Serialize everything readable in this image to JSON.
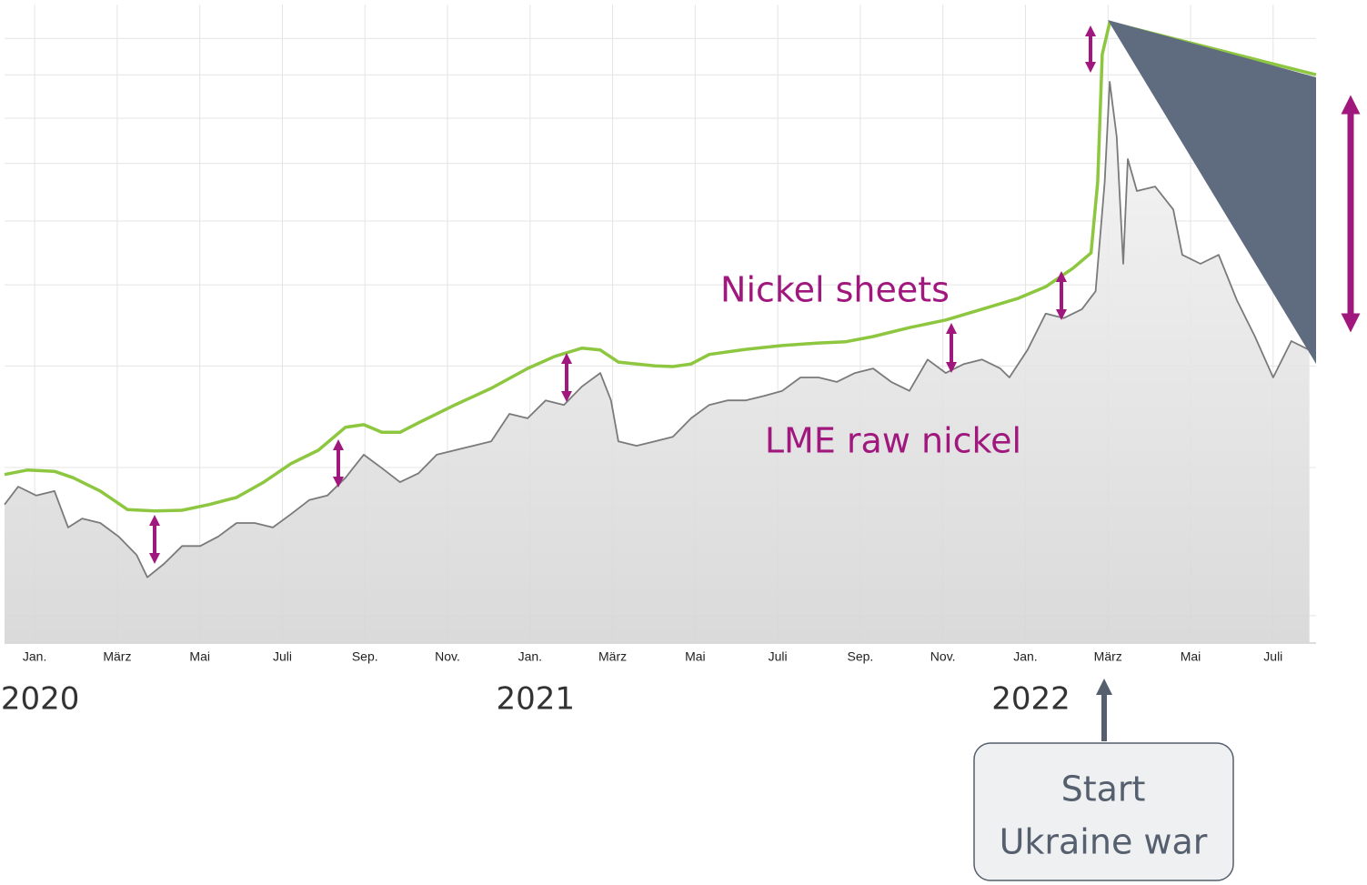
{
  "chart_data": {
    "type": "line",
    "annotations": [
      "Nickel sheets",
      "LME raw nickel"
    ],
    "callout": [
      "Start",
      "Ukraine war"
    ],
    "year_labels": [
      {
        "value": 0,
        "label": "2020"
      },
      {
        "value": 12,
        "label": "2021"
      },
      {
        "value": 24,
        "label": "2022"
      }
    ],
    "xlim": [
      -0.73,
      31.04
    ],
    "ylim": [
      0,
      100
    ],
    "xticks": [
      {
        "value": 0,
        "label": "Jan."
      },
      {
        "value": 2,
        "label": "März"
      },
      {
        "value": 4,
        "label": "Mai"
      },
      {
        "value": 6,
        "label": "Juli"
      },
      {
        "value": 8,
        "label": "Sep."
      },
      {
        "value": 10,
        "label": "Nov."
      },
      {
        "value": 12,
        "label": "Jan."
      },
      {
        "value": 14,
        "label": "März"
      },
      {
        "value": 16,
        "label": "Mai"
      },
      {
        "value": 18,
        "label": "Juli"
      },
      {
        "value": 20,
        "label": "Sep."
      },
      {
        "value": 22,
        "label": "Nov."
      },
      {
        "value": 24,
        "label": "Jan."
      },
      {
        "value": 26,
        "label": "März"
      },
      {
        "value": 28,
        "label": "Mai"
      },
      {
        "value": 30,
        "label": "Juli"
      }
    ],
    "yticks": [
      4.3,
      27.5,
      43.4,
      56.1,
      66.1,
      75.1,
      82.2,
      89.0,
      94.7
    ],
    "grid": true,
    "series": [
      {
        "name": "LME raw nickel",
        "color": "#7a7a7a",
        "area": true,
        "x": [
          -0.73,
          -0.4,
          0.04,
          0.48,
          0.81,
          1.15,
          1.59,
          2.03,
          2.47,
          2.73,
          3.13,
          3.57,
          4.01,
          4.45,
          4.89,
          5.33,
          5.77,
          6.21,
          6.65,
          7.09,
          7.53,
          7.97,
          8.41,
          8.85,
          9.3,
          9.74,
          10.18,
          10.62,
          11.06,
          11.5,
          11.94,
          12.38,
          12.82,
          13.26,
          13.7,
          13.96,
          14.14,
          14.58,
          15.02,
          15.46,
          15.9,
          16.34,
          16.78,
          17.22,
          17.67,
          18.11,
          18.55,
          18.99,
          19.43,
          19.87,
          20.31,
          20.75,
          21.19,
          21.63,
          22.07,
          22.51,
          22.95,
          23.39,
          23.61,
          24.05,
          24.49,
          24.93,
          25.37,
          25.7,
          25.92,
          26.04,
          26.21,
          26.37,
          26.48,
          26.7,
          27.14,
          27.58,
          27.8,
          28.24,
          28.68,
          29.12,
          29.56,
          30.0,
          30.44,
          30.88
        ],
        "values": [
          21.7,
          24.5,
          23.1,
          23.8,
          18.1,
          19.5,
          18.8,
          16.7,
          13.8,
          10.3,
          12.4,
          15.2,
          15.2,
          16.7,
          18.8,
          18.8,
          18.1,
          20.2,
          22.4,
          23.1,
          25.9,
          29.5,
          27.4,
          25.2,
          26.6,
          29.5,
          30.2,
          30.9,
          31.6,
          35.9,
          35.2,
          38.0,
          37.3,
          40.2,
          42.3,
          38.0,
          31.6,
          30.9,
          31.6,
          32.3,
          35.2,
          37.3,
          38.0,
          38.0,
          38.7,
          39.5,
          41.6,
          41.6,
          40.9,
          42.3,
          43.0,
          40.9,
          39.5,
          44.4,
          42.3,
          43.7,
          44.4,
          43.0,
          41.6,
          45.9,
          51.6,
          50.9,
          52.3,
          55.1,
          72.2,
          87.9,
          79.3,
          59.4,
          75.8,
          70.8,
          71.5,
          67.9,
          60.8,
          59.4,
          60.8,
          53.7,
          48.0,
          41.6,
          47.3,
          45.9
        ]
      },
      {
        "name": "Nickel sheets",
        "color": "#8dc63f",
        "x": [
          -0.73,
          -0.18,
          0.48,
          0.93,
          1.59,
          2.25,
          2.91,
          3.57,
          4.23,
          4.89,
          5.55,
          6.21,
          6.87,
          7.53,
          7.97,
          8.41,
          8.85,
          9.3,
          10.18,
          11.06,
          11.94,
          12.6,
          13.26,
          13.7,
          14.14,
          15.02,
          15.46,
          15.9,
          16.34,
          17.22,
          18.11,
          18.99,
          19.65,
          20.31,
          21.19,
          22.07,
          22.95,
          23.83,
          24.49,
          25.15,
          25.59,
          25.75,
          25.86,
          26.04,
          31.04
        ],
        "values": [
          26.4,
          27.1,
          26.9,
          25.9,
          23.8,
          20.9,
          20.7,
          20.8,
          21.7,
          22.8,
          25.2,
          28.1,
          30.2,
          33.8,
          34.2,
          33.0,
          33.0,
          34.5,
          37.3,
          39.9,
          43.0,
          44.9,
          46.2,
          45.9,
          44.0,
          43.4,
          43.3,
          43.7,
          45.2,
          46.0,
          46.6,
          47.0,
          47.2,
          48.0,
          49.4,
          50.6,
          52.3,
          54.0,
          55.8,
          58.7,
          61.1,
          72.2,
          92.2,
          97.2,
          89.0
        ]
      }
    ]
  }
}
